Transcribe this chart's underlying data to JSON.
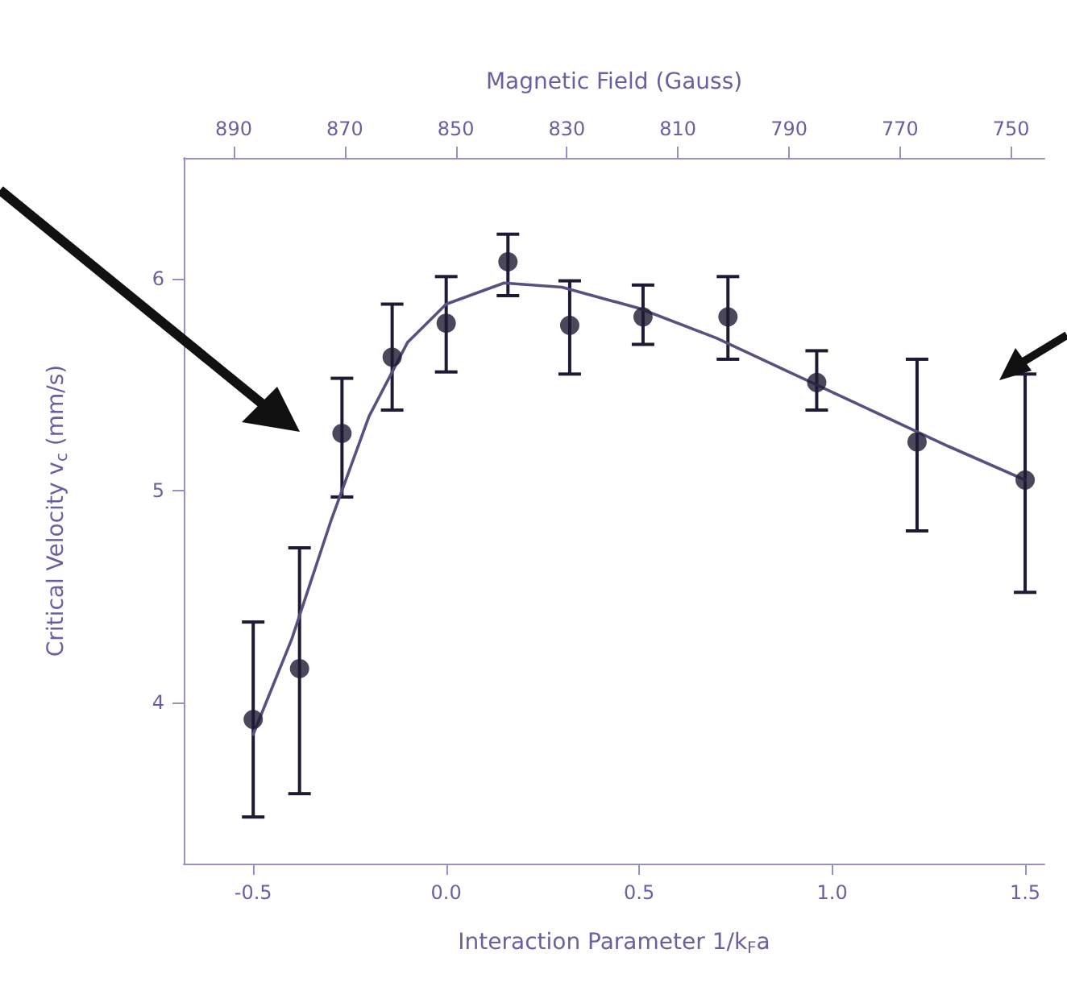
{
  "chart_data": {
    "type": "scatter",
    "xlabel": "Interaction Parameter 1/k$_{F}$a",
    "ylabel": "Critical Velocity v$_{c}$ (mm/s)",
    "x2label": "Magnetic Field (Gauss)",
    "xlim": [
      -0.68,
      1.55
    ],
    "xticks": [
      {
        "value": -0.5,
        "label": "-0.5"
      },
      {
        "value": 0,
        "label": "0.0"
      },
      {
        "value": 0.5,
        "label": "0.5"
      },
      {
        "value": 1,
        "label": "1.0"
      },
      {
        "value": 1.5,
        "label": "1.5"
      }
    ],
    "x2lim": [
      899,
      744
    ],
    "x2ticks": [
      890,
      870,
      850,
      830,
      810,
      790,
      770,
      750
    ],
    "ylim": [
      3.24,
      6.57
    ],
    "yticks": [
      4,
      5,
      6
    ],
    "grid": false,
    "series": [
      {
        "color": "#1e1a33",
        "marker": "circle",
        "x": [
          -0.5,
          -0.38,
          -0.27,
          -0.14,
          0.0,
          0.16,
          0.32,
          0.51,
          0.73,
          0.96,
          1.22,
          1.5
        ],
        "values": [
          3.92,
          4.16,
          5.27,
          5.63,
          5.79,
          6.08,
          5.78,
          5.82,
          5.82,
          5.51,
          5.23,
          5.05
        ],
        "errors": [
          [
            3.46,
            4.38
          ],
          [
            3.57,
            4.73
          ],
          [
            4.97,
            5.53
          ],
          [
            5.38,
            5.88
          ],
          [
            5.56,
            6.01
          ],
          [
            5.92,
            6.21
          ],
          [
            5.55,
            5.99
          ],
          [
            5.69,
            5.97
          ],
          [
            5.62,
            6.01
          ],
          [
            5.38,
            5.66
          ],
          [
            4.81,
            5.62
          ],
          [
            4.52,
            5.55
          ]
        ]
      },
      {
        "type": "line",
        "color": "#5a4f80",
        "marker": "none",
        "line_style": "solid",
        "x": [
          -0.5,
          -0.4,
          -0.3,
          -0.2,
          -0.1,
          0.0,
          0.15,
          0.3,
          0.5,
          0.7,
          0.9,
          1.1,
          1.3,
          1.5
        ],
        "values": [
          3.85,
          4.3,
          4.85,
          5.35,
          5.7,
          5.88,
          5.98,
          5.96,
          5.86,
          5.72,
          5.55,
          5.38,
          5.21,
          5.05
        ]
      }
    ]
  }
}
